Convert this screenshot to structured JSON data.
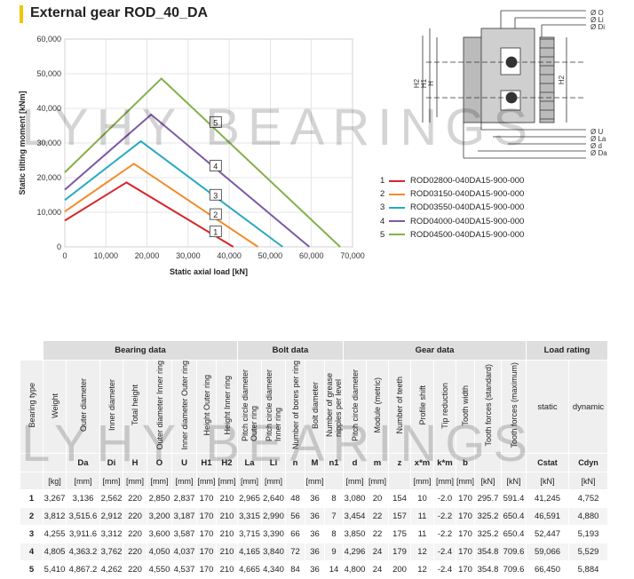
{
  "title": "External gear ROD_40_DA",
  "watermark": "LYHY BEARINGS",
  "chart_data": {
    "type": "line",
    "xlabel": "Static axial load [kN]",
    "ylabel": "Static tilting moment [kNm]",
    "xlim": [
      0,
      70000
    ],
    "ylim": [
      0,
      60000
    ],
    "x_ticks": [
      "0",
      "10,000",
      "20,000",
      "30,000",
      "40,000",
      "50,000",
      "60,000",
      "70,000"
    ],
    "y_ticks": [
      "0",
      "10,000",
      "20,000",
      "30,000",
      "40,000",
      "50,000",
      "60,000"
    ],
    "grid": true,
    "series": [
      {
        "name": "1",
        "color": "#d6262b",
        "points": [
          [
            0,
            7600
          ],
          [
            15000,
            18600
          ],
          [
            41000,
            0
          ]
        ]
      },
      {
        "name": "2",
        "color": "#f28c2d",
        "points": [
          [
            0,
            10200
          ],
          [
            16800,
            24000
          ],
          [
            47000,
            0
          ]
        ]
      },
      {
        "name": "3",
        "color": "#2aa9c2",
        "points": [
          [
            0,
            13500
          ],
          [
            18500,
            30500
          ],
          [
            53000,
            0
          ]
        ]
      },
      {
        "name": "4",
        "color": "#7c5aa6",
        "points": [
          [
            0,
            16500
          ],
          [
            21000,
            38200
          ],
          [
            59500,
            0
          ]
        ]
      },
      {
        "name": "5",
        "color": "#84b04a",
        "points": [
          [
            0,
            21500
          ],
          [
            23500,
            48600
          ],
          [
            67000,
            0
          ]
        ]
      }
    ],
    "label_positions": [
      {
        "label": "1",
        "x": 35500,
        "y": 4200
      },
      {
        "label": "2",
        "x": 35500,
        "y": 9200
      },
      {
        "label": "3",
        "x": 35500,
        "y": 14800
      },
      {
        "label": "4",
        "x": 35500,
        "y": 23200
      },
      {
        "label": "5",
        "x": 35500,
        "y": 35800
      }
    ]
  },
  "legend": [
    {
      "num": "1",
      "label": "ROD02800-040DA15-900-000",
      "color": "#d6262b"
    },
    {
      "num": "2",
      "label": "ROD03150-040DA15-900-000",
      "color": "#f28c2d"
    },
    {
      "num": "3",
      "label": "ROD03550-040DA15-900-000",
      "color": "#2aa9c2"
    },
    {
      "num": "4",
      "label": "ROD04000-040DA15-900-000",
      "color": "#7c5aa6"
    },
    {
      "num": "5",
      "label": "ROD04500-040DA15-900-000",
      "color": "#84b04a"
    }
  ],
  "drawing": {
    "right_labels": [
      "Ø O",
      "Ø Li",
      "Ø Di",
      "Ø U",
      "Ø La",
      "Ø d",
      "Ø Da"
    ],
    "left_labels": [
      "H2",
      "H1",
      "H"
    ],
    "inner_label": "H2"
  },
  "table": {
    "groups": [
      "Bearing data",
      "Bolt data",
      "Gear data",
      "Load rating"
    ],
    "columns": [
      "Bearing type",
      "Weight",
      "Outer diameter",
      "Inner diameter",
      "Total height",
      "Outer diameter Inner ring",
      "Inner diameter Outer ring",
      "Height Outer ring",
      "Height Inner ring",
      "Pitch circle diameter\nOuter ring",
      "Pitch circle diameter\nInner ring",
      "Number of bores per ring",
      "Bolt diameter",
      "Number of grease\nnipples per level",
      "Pitch circle diameter",
      "Module (metric)",
      "Number of teeth",
      "Profile shift",
      "Tip reduction",
      "Tooth width",
      "Tooth forces (standard)",
      "Tooth forces (maximum)",
      "static",
      "dynamic"
    ],
    "symbols": [
      "",
      "",
      "Da",
      "Di",
      "H",
      "O",
      "U",
      "H1",
      "H2",
      "La",
      "Li",
      "n",
      "M",
      "n1",
      "d",
      "m",
      "z",
      "x*m",
      "k*m",
      "b",
      "",
      "",
      "Cstat",
      "Cdyn"
    ],
    "units": [
      "",
      "[kg]",
      "[mm]",
      "[mm]",
      "[mm]",
      "[mm]",
      "[mm]",
      "[mm]",
      "[mm]",
      "[mm]",
      "[mm]",
      "",
      "[mm]",
      "",
      "[mm]",
      "[mm]",
      "",
      "[mm]",
      "[mm]",
      "[mm]",
      "[kN]",
      "[kN]",
      "[kN]",
      "[kN]"
    ],
    "rows": [
      [
        "1",
        "3,267",
        "3,136",
        "2,562",
        "220",
        "2,850",
        "2,837",
        "170",
        "210",
        "2,965",
        "2,640",
        "48",
        "36",
        "8",
        "3,080",
        "20",
        "154",
        "10",
        "-2.0",
        "170",
        "295.7",
        "591.4",
        "41,245",
        "4,752"
      ],
      [
        "2",
        "3,812",
        "3,515.6",
        "2,912",
        "220",
        "3,200",
        "3,187",
        "170",
        "210",
        "3,315",
        "2,990",
        "56",
        "36",
        "7",
        "3,454",
        "22",
        "157",
        "11",
        "-2.2",
        "170",
        "325.2",
        "650.4",
        "46,591",
        "4,880"
      ],
      [
        "3",
        "4,255",
        "3,911.6",
        "3,312",
        "220",
        "3,600",
        "3,587",
        "170",
        "210",
        "3,715",
        "3,390",
        "66",
        "36",
        "8",
        "3,850",
        "22",
        "175",
        "11",
        "-2.2",
        "170",
        "325.2",
        "650.4",
        "52,447",
        "5,193"
      ],
      [
        "4",
        "4,805",
        "4,363.2",
        "3,762",
        "220",
        "4,050",
        "4,037",
        "170",
        "210",
        "4,165",
        "3,840",
        "72",
        "36",
        "9",
        "4,296",
        "24",
        "179",
        "12",
        "-2.4",
        "170",
        "354.8",
        "709.6",
        "59,066",
        "5,529"
      ],
      [
        "5",
        "5,410",
        "4,867.2",
        "4,262",
        "220",
        "4,550",
        "4,537",
        "170",
        "210",
        "4,665",
        "4,340",
        "84",
        "36",
        "14",
        "4,800",
        "24",
        "200",
        "12",
        "-2.4",
        "170",
        "354.8",
        "709.6",
        "66,450",
        "5,884"
      ]
    ]
  }
}
